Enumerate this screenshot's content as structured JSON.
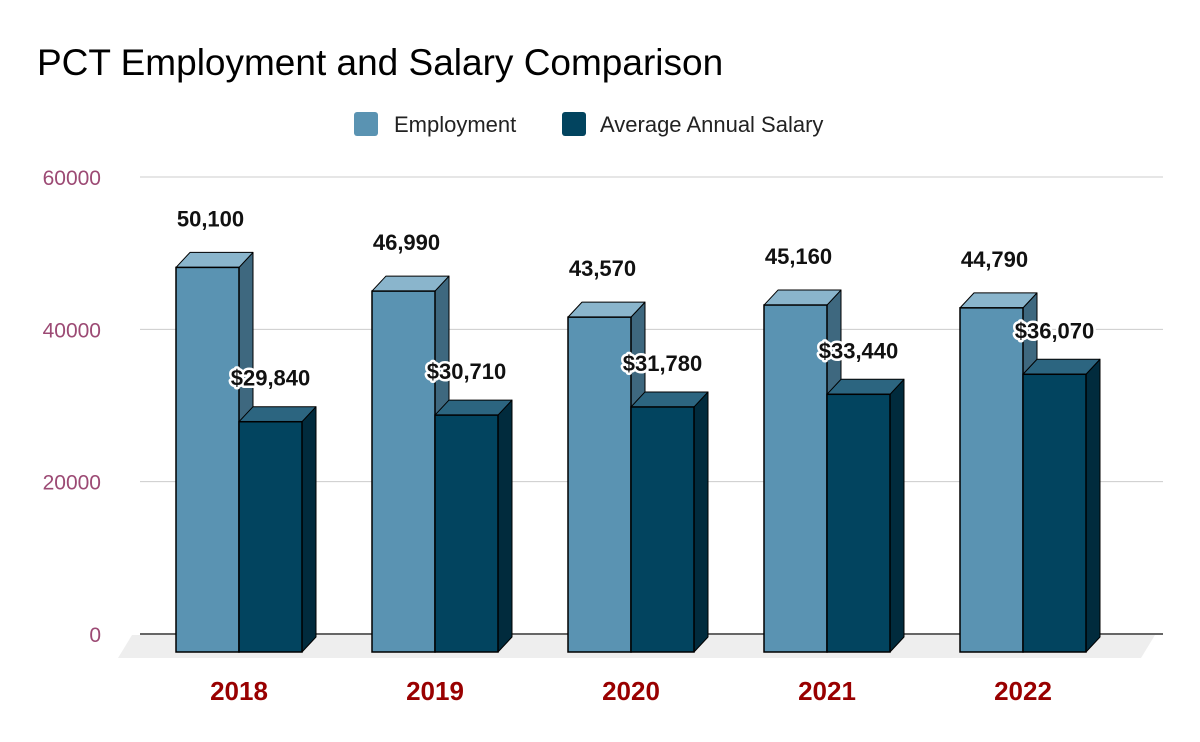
{
  "chart_data": {
    "type": "bar",
    "title": "PCT Employment and Salary Comparison",
    "categories": [
      "2018",
      "2019",
      "2020",
      "2021",
      "2022"
    ],
    "series": [
      {
        "name": "Employment",
        "values": [
          50100,
          46990,
          43570,
          45160,
          44790
        ],
        "labels": [
          "50,100",
          "46,990",
          "43,570",
          "45,160",
          "44,790"
        ]
      },
      {
        "name": "Average Annual Salary",
        "values": [
          29840,
          30710,
          31780,
          33440,
          36070
        ],
        "labels": [
          "$29,840",
          "$30,710",
          "$31,780",
          "$33,440",
          "$36,070"
        ]
      }
    ],
    "ylim": [
      0,
      60000
    ],
    "yticks": [
      0,
      20000,
      40000,
      60000
    ],
    "xlabel": "",
    "ylabel": "",
    "legend": "top-center",
    "grid": true
  },
  "colors": {
    "employment_front": "#5a93b2",
    "employment_top": "#8ab5cc",
    "employment_side": "#3e687f",
    "salary_front": "#02445f",
    "salary_top": "#2c6580",
    "salary_side": "#012b3d",
    "ytick": "#9c4a74",
    "xtick": "#990000",
    "gridline": "#cccccc",
    "baseline": "#333333",
    "floor": "#eeeeee"
  }
}
